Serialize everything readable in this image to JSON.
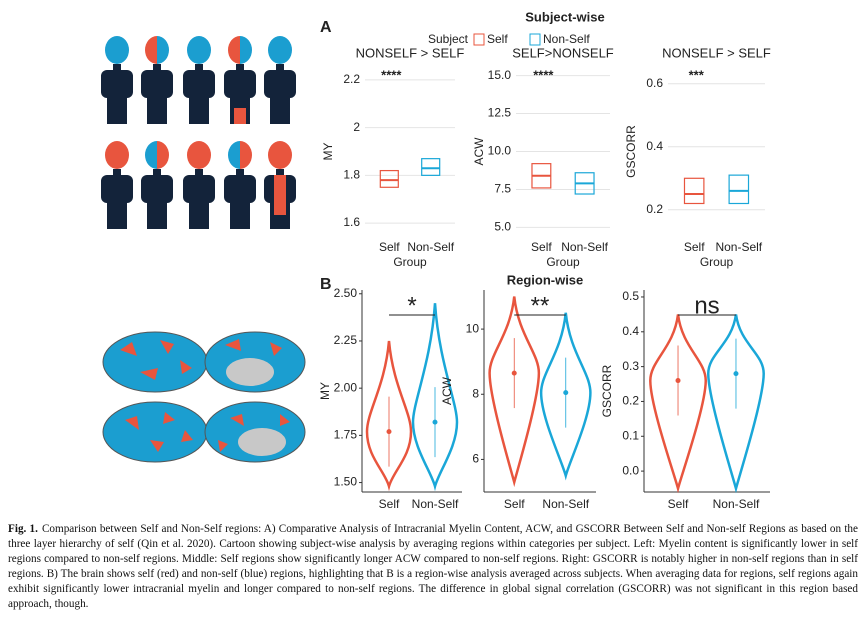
{
  "panel_a": {
    "label": "A",
    "title": "Subject-wise",
    "legend_title": "Subject",
    "legend": [
      {
        "name": "Self",
        "color": "#e8553e"
      },
      {
        "name": "Non-Self",
        "color": "#1aa7d8"
      }
    ],
    "chart_data": [
      {
        "type": "box",
        "title": "NONSELF > SELF",
        "annotation": "****",
        "ylabel": "MY",
        "xlabel": "Group",
        "categories": [
          "Self",
          "Non-Self"
        ],
        "grid": true,
        "q1": [
          1.75,
          1.8
        ],
        "median": [
          1.78,
          1.83
        ],
        "q3": [
          1.82,
          1.87
        ],
        "ylim": [
          1.55,
          2.25
        ],
        "yticks": [
          1.6,
          1.8,
          2.0,
          2.2
        ]
      },
      {
        "type": "box",
        "title": "SELF>NONSELF",
        "annotation": "****",
        "ylabel": "ACW",
        "xlabel": "Group",
        "categories": [
          "Self",
          "Non-Self"
        ],
        "grid": true,
        "q1": [
          7.6,
          7.2
        ],
        "median": [
          8.4,
          7.9
        ],
        "q3": [
          9.2,
          8.6
        ],
        "ylim": [
          4.5,
          15.5
        ],
        "yticks": [
          {
            "value": 5,
            "label": "5.0"
          },
          7.5,
          {
            "value": 10,
            "label": "10.0"
          },
          12.5,
          {
            "value": 15,
            "label": "15.0"
          }
        ]
      },
      {
        "type": "box",
        "title": "NONSELF > SELF",
        "annotation": "***",
        "ylabel": "GSCORR",
        "xlabel": "Group",
        "categories": [
          "Self",
          "Non-Self"
        ],
        "grid": true,
        "q1": [
          0.22,
          0.22
        ],
        "median": [
          0.25,
          0.26
        ],
        "q3": [
          0.3,
          0.31
        ],
        "ylim": [
          0.12,
          0.65
        ],
        "yticks": [
          0.2,
          0.4,
          0.6
        ]
      }
    ]
  },
  "panel_b": {
    "label": "B",
    "title": "Region-wise",
    "chart_data": [
      {
        "type": "violin",
        "annotation": "*",
        "ylabel": "MY",
        "categories": [
          "Self",
          "Non-Self"
        ],
        "grid": false,
        "colors": [
          "#e8553e",
          "#1aa7d8"
        ],
        "ranges": [
          [
            1.48,
            2.25
          ],
          [
            1.48,
            2.45
          ]
        ],
        "means": [
          1.77,
          1.82
        ],
        "ylim": [
          1.45,
          2.52
        ],
        "yticks": [
          {
            "value": 1.5,
            "label": "1.50"
          },
          1.75,
          {
            "value": 2,
            "label": "2.00"
          },
          2.25,
          {
            "value": 2.5,
            "label": "2.50"
          }
        ]
      },
      {
        "type": "violin",
        "annotation": "**",
        "ylabel": "ACW",
        "categories": [
          "Self",
          "Non-Self"
        ],
        "grid": false,
        "colors": [
          "#e8553e",
          "#1aa7d8"
        ],
        "ranges": [
          [
            5.3,
            11.0
          ],
          [
            5.5,
            10.5
          ]
        ],
        "means": [
          8.65,
          8.05
        ],
        "ylim": [
          5.0,
          11.2
        ],
        "yticks": [
          6,
          8,
          10
        ]
      },
      {
        "type": "violin",
        "annotation": "ns",
        "ylabel": "GSCORR",
        "categories": [
          "Self",
          "Non-Self"
        ],
        "grid": false,
        "colors": [
          "#e8553e",
          "#1aa7d8"
        ],
        "ranges": [
          [
            -0.05,
            0.45
          ],
          [
            -0.05,
            0.45
          ]
        ],
        "means": [
          0.26,
          0.28
        ],
        "ylim": [
          -0.06,
          0.52
        ],
        "yticks": [
          {
            "value": 0,
            "label": "0.0"
          },
          0.1,
          0.2,
          0.3,
          0.4,
          0.5
        ]
      }
    ]
  },
  "caption": {
    "label": "Fig. 1.",
    "text": "Comparison between Self and Non-Self regions: A) Comparative Analysis of Intracranial Myelin Content, ACW, and GSCORR Between Self and Non-self Regions as based on the three layer hierarchy of self (Qin et al. 2020). Cartoon showing subject-wise analysis by averaging regions within categories per subject. Left: Myelin content is significantly lower in self regions compared to non-self regions. Middle: Self regions show significantly longer ACW compared to non-self regions. Right: GSCORR is notably higher in non-self regions than in self regions. B) The brain shows self (red) and non-self (blue) regions, highlighting that B is a region-wise analysis averaged across subjects. When averaging data for regions, self regions again exhibit significantly lower intracranial myelin and longer compared to non-self regions. The difference in global signal correlation (GSCORR) was not significant in this region based approach, though."
  }
}
